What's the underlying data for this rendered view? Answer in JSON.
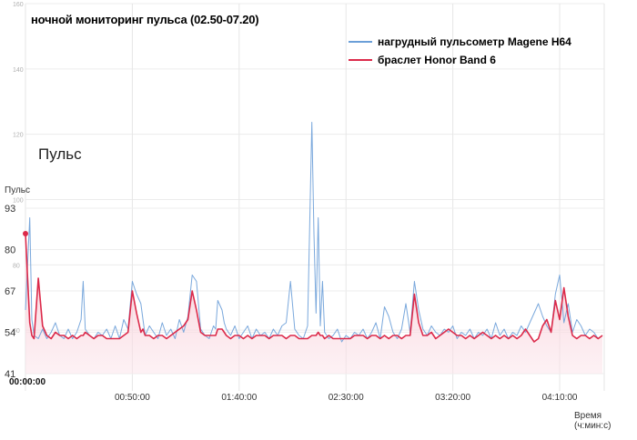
{
  "chart_data": {
    "type": "line",
    "title": "ночной мониторинг пульса (02.50-07.20)",
    "panel_label": "Пульс",
    "ylabel": "Пульс",
    "xlabel": "Время (ч:мин:с)",
    "x_start_label": "00:00:00",
    "x_tick_labels": [
      "00:50:00",
      "01:40:00",
      "02:30:00",
      "03:20:00",
      "04:10:00"
    ],
    "x_ticks_min": [
      50,
      100,
      150,
      200,
      250
    ],
    "xlim_min": [
      0,
      270
    ],
    "y_tick_labels": [
      "93",
      "80",
      "67",
      "54",
      "41"
    ],
    "y_ticks": [
      93,
      80,
      67,
      54,
      41
    ],
    "ylim": [
      41,
      93
    ],
    "faint_y_tick_labels": [
      "160",
      "140",
      "120",
      "100",
      "80",
      "60"
    ],
    "faint_y_ticks": [
      160,
      140,
      120,
      100,
      80,
      60
    ],
    "faint_ylim": [
      40,
      160
    ],
    "grid": true,
    "legend_position": "top-right",
    "series": [
      {
        "name": "нагрудный пульсометр Magene H64",
        "color": "#6b9fd8",
        "x_min": [
          0,
          2,
          3,
          4,
          6,
          8,
          10,
          12,
          14,
          16,
          18,
          20,
          22,
          24,
          26,
          27,
          28,
          30,
          32,
          34,
          36,
          38,
          40,
          42,
          44,
          46,
          48,
          50,
          52,
          54,
          55,
          56,
          58,
          60,
          62,
          64,
          66,
          68,
          70,
          72,
          74,
          76,
          78,
          80,
          82,
          84,
          86,
          88,
          89,
          90,
          92,
          93,
          94,
          96,
          98,
          100,
          102,
          104,
          106,
          108,
          110,
          112,
          114,
          116,
          118,
          120,
          122,
          124,
          126,
          128,
          130,
          132,
          134,
          135,
          136,
          137,
          138,
          139,
          140,
          142,
          144,
          146,
          148,
          150,
          152,
          154,
          156,
          158,
          160,
          162,
          164,
          166,
          168,
          170,
          172,
          174,
          176,
          178,
          180,
          182,
          184,
          186,
          188,
          190,
          192,
          194,
          196,
          198,
          200,
          202,
          204,
          206,
          208,
          210,
          212,
          214,
          216,
          218,
          220,
          222,
          224,
          226,
          228,
          230,
          232,
          234,
          236,
          238,
          240,
          242,
          244,
          246,
          248,
          250,
          252,
          254,
          256,
          258,
          260,
          262,
          264,
          266,
          268,
          270
        ],
        "y": [
          61,
          90,
          58,
          53,
          52,
          55,
          52,
          54,
          57,
          53,
          52,
          55,
          52,
          54,
          58,
          70,
          55,
          53,
          52,
          54,
          53,
          55,
          52,
          56,
          52,
          58,
          55,
          70,
          66,
          63,
          58,
          53,
          56,
          54,
          52,
          57,
          53,
          55,
          52,
          58,
          54,
          59,
          72,
          70,
          55,
          53,
          52,
          56,
          55,
          64,
          61,
          57,
          55,
          53,
          56,
          52,
          54,
          56,
          52,
          55,
          53,
          54,
          52,
          55,
          53,
          56,
          57,
          70,
          55,
          53,
          52,
          56,
          120,
          85,
          60,
          90,
          56,
          70,
          54,
          52,
          53,
          55,
          51,
          53,
          52,
          54,
          53,
          55,
          52,
          54,
          57,
          52,
          62,
          59,
          54,
          52,
          55,
          63,
          54,
          70,
          61,
          55,
          53,
          56,
          54,
          53,
          55,
          54,
          56,
          52,
          54,
          53,
          55,
          52,
          54,
          53,
          55,
          52,
          57,
          53,
          55,
          52,
          54,
          53,
          56,
          54,
          57,
          60,
          63,
          59,
          56,
          54,
          66,
          72,
          57,
          63,
          54,
          58,
          56,
          53,
          55,
          54,
          52,
          53
        ]
      },
      {
        "name": "браслет Honor Band 6",
        "color": "#dc2a4a",
        "x_min": [
          0,
          2,
          3,
          4,
          6,
          8,
          10,
          12,
          14,
          16,
          18,
          20,
          22,
          24,
          26,
          27,
          28,
          30,
          32,
          34,
          36,
          38,
          40,
          42,
          44,
          46,
          48,
          50,
          52,
          54,
          55,
          56,
          58,
          60,
          62,
          64,
          66,
          68,
          70,
          72,
          74,
          76,
          78,
          80,
          82,
          84,
          86,
          88,
          89,
          90,
          92,
          93,
          94,
          96,
          98,
          100,
          102,
          104,
          106,
          108,
          110,
          112,
          114,
          116,
          118,
          120,
          122,
          124,
          126,
          128,
          130,
          132,
          134,
          135,
          136,
          137,
          138,
          139,
          140,
          142,
          144,
          146,
          148,
          150,
          152,
          154,
          156,
          158,
          160,
          162,
          164,
          166,
          168,
          170,
          172,
          174,
          176,
          178,
          180,
          182,
          184,
          186,
          188,
          190,
          192,
          194,
          196,
          198,
          200,
          202,
          204,
          206,
          208,
          210,
          212,
          214,
          216,
          218,
          220,
          222,
          224,
          226,
          228,
          230,
          232,
          234,
          236,
          238,
          240,
          242,
          244,
          246,
          248,
          250,
          252,
          254,
          256,
          258,
          260,
          262,
          264,
          266,
          268,
          270
        ],
        "y": [
          85,
          57,
          53,
          52,
          71,
          56,
          53,
          52,
          54,
          53,
          53,
          52,
          53,
          52,
          53,
          53,
          54,
          53,
          52,
          53,
          53,
          52,
          52,
          52,
          52,
          53,
          54,
          67,
          60,
          54,
          55,
          53,
          53,
          52,
          53,
          53,
          52,
          53,
          54,
          55,
          56,
          58,
          67,
          61,
          54,
          53,
          53,
          53,
          53,
          55,
          55,
          54,
          53,
          52,
          53,
          53,
          52,
          53,
          52,
          53,
          53,
          53,
          52,
          53,
          53,
          53,
          52,
          53,
          53,
          52,
          52,
          52,
          53,
          53,
          53,
          54,
          53,
          53,
          52,
          53,
          52,
          52,
          52,
          52,
          52,
          53,
          53,
          53,
          52,
          53,
          53,
          52,
          53,
          52,
          53,
          53,
          52,
          53,
          53,
          66,
          57,
          53,
          53,
          54,
          52,
          53,
          54,
          55,
          54,
          53,
          53,
          52,
          53,
          52,
          53,
          54,
          53,
          52,
          53,
          52,
          53,
          52,
          53,
          52,
          53,
          55,
          53,
          51,
          52,
          56,
          58,
          54,
          64,
          58,
          68,
          59,
          53,
          52,
          53,
          53,
          52,
          53,
          52,
          53
        ]
      }
    ]
  }
}
